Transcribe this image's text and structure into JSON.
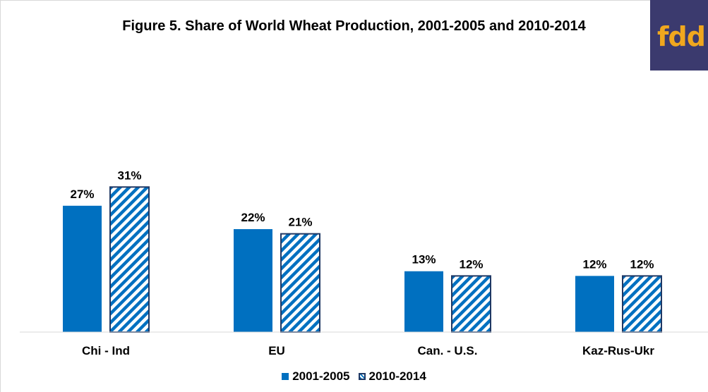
{
  "logo": {
    "text": "fdd"
  },
  "colors": {
    "series1": "#0070c0",
    "series2_stripe": "#0070c0",
    "series2_border": "#1f3864",
    "logo_bg": "#3b3a6e",
    "logo_text": "#f0a71e"
  },
  "chart_data": {
    "type": "bar",
    "title": "Figure 5. Share of World Wheat Production, 2001-2005 and 2010-2014",
    "categories": [
      "Chi - Ind",
      "EU",
      "Can. - U.S.",
      "Kaz-Rus-Ukr"
    ],
    "series": [
      {
        "name": "2001-2005",
        "values": [
          27,
          22,
          13,
          12
        ],
        "labels": [
          "27%",
          "22%",
          "13%",
          "12%"
        ],
        "style": "solid"
      },
      {
        "name": "2010-2014",
        "values": [
          31,
          21,
          12,
          12
        ],
        "labels": [
          "31%",
          "21%",
          "12%",
          "12%"
        ],
        "style": "hatched"
      }
    ],
    "ylim": [
      0,
      55
    ],
    "grid": false,
    "legend": "bottom"
  }
}
